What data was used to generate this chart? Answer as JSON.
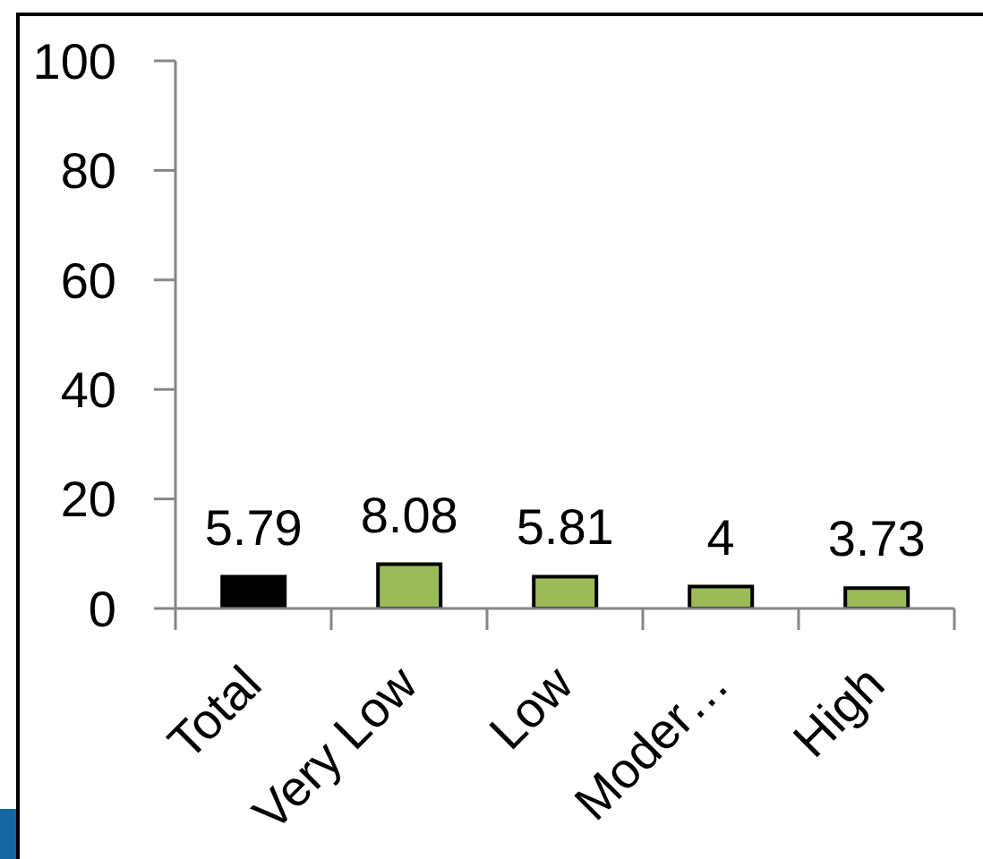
{
  "chart_data": {
    "type": "bar",
    "categories": [
      "Total",
      "Very Low",
      "Low",
      "Moder…",
      "High"
    ],
    "values": [
      5.79,
      8.08,
      5.81,
      4,
      3.73
    ],
    "colors": [
      "#000000",
      "#9bbb59",
      "#9bbb59",
      "#9bbb59",
      "#9bbb59"
    ],
    "ylim": [
      0,
      100
    ],
    "yticks": [
      0,
      20,
      40,
      60,
      80,
      100
    ],
    "data_labels": true
  }
}
